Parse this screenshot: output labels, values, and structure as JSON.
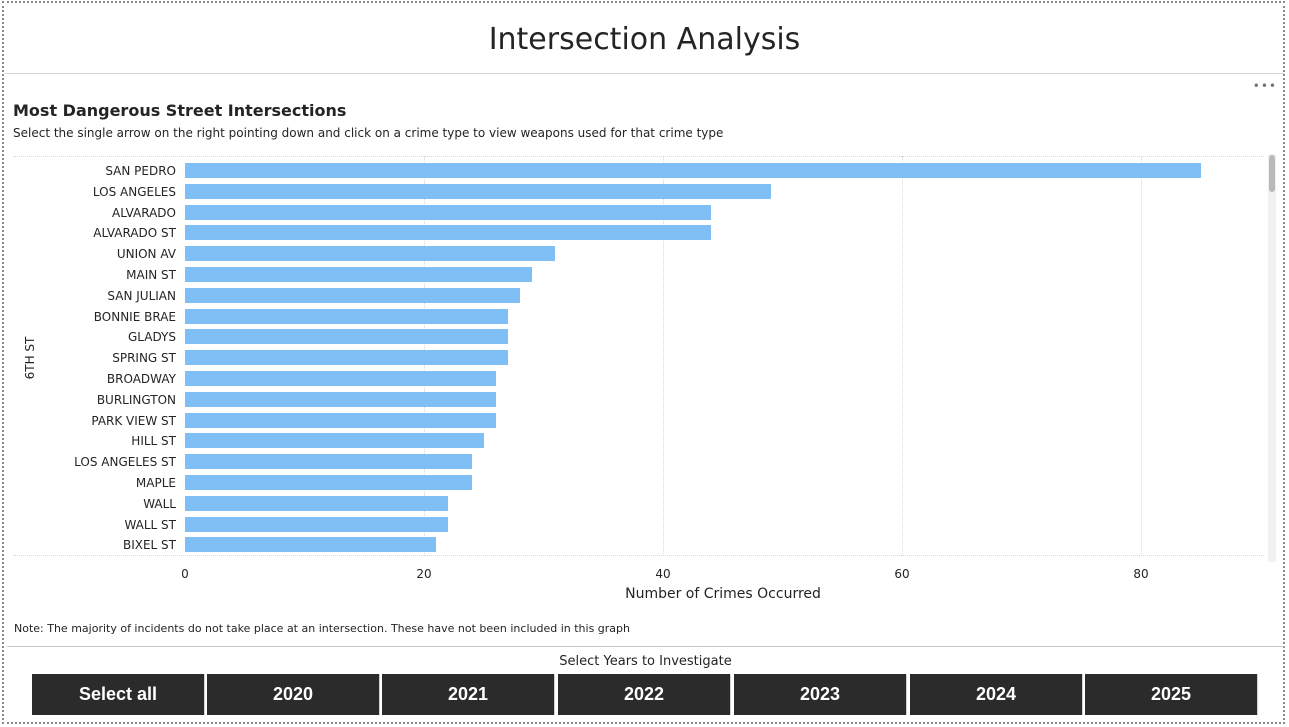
{
  "page": {
    "title": "Intersection Analysis"
  },
  "visual": {
    "title": "Most Dangerous Street Intersections",
    "subtitle": "Select the single arrow on the right pointing down and click on a crime type to view weapons used for that crime type",
    "more_options_icon": "more-options-icon",
    "note": "Note: The majority of incidents do not take place at an intersection. These have not been included in this graph"
  },
  "chart_data": {
    "type": "bar",
    "orientation": "horizontal",
    "ylabel": "6TH ST",
    "xlabel": "Number of Crimes Occurred",
    "x_ticks": [
      "0",
      "20",
      "40",
      "60",
      "80"
    ],
    "xlim": [
      0,
      90
    ],
    "categories": [
      "SAN PEDRO",
      "LOS ANGELES",
      "ALVARADO",
      "ALVARADO ST",
      "UNION AV",
      "MAIN ST",
      "SAN JULIAN",
      "BONNIE BRAE",
      "GLADYS",
      "SPRING ST",
      "BROADWAY",
      "BURLINGTON",
      "PARK VIEW ST",
      "HILL ST",
      "LOS ANGELES ST",
      "MAPLE",
      "WALL",
      "WALL ST",
      "BIXEL ST"
    ],
    "values": [
      85,
      49,
      44,
      44,
      31,
      29,
      28,
      27,
      27,
      27,
      26,
      26,
      26,
      25,
      24,
      24,
      22,
      22,
      21
    ],
    "bar_color": "#7FBFF5",
    "grid": true
  },
  "slicer": {
    "title": "Select Years to Investigate",
    "options": [
      "Select all",
      "2020",
      "2021",
      "2022",
      "2023",
      "2024",
      "2025"
    ]
  }
}
